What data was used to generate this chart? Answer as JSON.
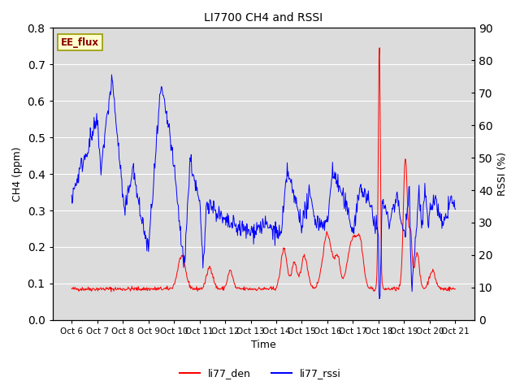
{
  "title": "LI7700 CH4 and RSSI",
  "xlabel": "Time",
  "ylabel_left": "CH4 (ppm)",
  "ylabel_right": "RSSI (%)",
  "annotation": "EE_flux",
  "ylim_left": [
    0.0,
    0.8
  ],
  "ylim_right": [
    0,
    90
  ],
  "yticks_left": [
    0.0,
    0.1,
    0.2,
    0.3,
    0.4,
    0.5,
    0.6,
    0.7,
    0.8
  ],
  "yticks_right": [
    0,
    10,
    20,
    30,
    40,
    50,
    60,
    70,
    80,
    90
  ],
  "xtick_labels": [
    "Oct 6",
    "Oct 7",
    "Oct 8",
    "Oct 9",
    "Oct 10",
    "Oct 11",
    "Oct 12",
    "Oct 13",
    "Oct 14",
    "Oct 15",
    "Oct 16",
    "Oct 17",
    "Oct 18",
    "Oct 19",
    "Oct 20",
    "Oct 21"
  ],
  "color_red": "#FF0000",
  "color_blue": "#0000FF",
  "bg_color": "#DCDCDC",
  "legend_labels": [
    "li77_den",
    "li77_rssi"
  ]
}
